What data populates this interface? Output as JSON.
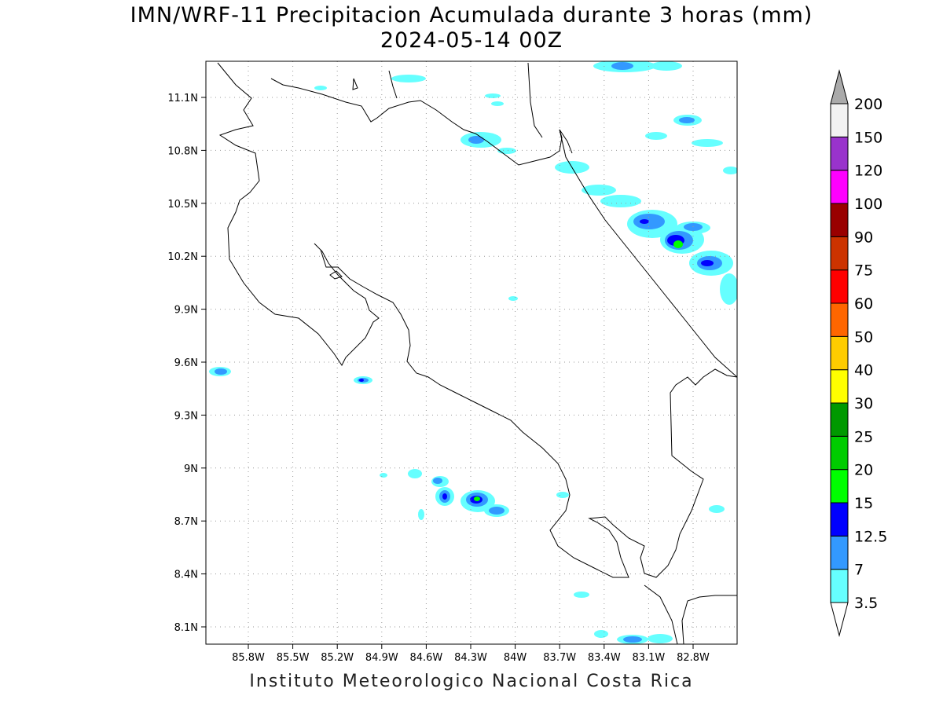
{
  "title": {
    "line1": "IMN/WRF-11 Precipitacion Acumulada durante 3 horas (mm)",
    "line2": "2024-05-14 00Z"
  },
  "footer": "Instituto Meteorologico Nacional Costa Rica",
  "map": {
    "lon_range": [
      -86.05,
      -83.05
    ],
    "lat_range": [
      8.0,
      11.3
    ],
    "lon_ticks": [
      {
        "value": -85.8,
        "label": "85.8W"
      },
      {
        "value": -85.5,
        "label": "85.5W"
      },
      {
        "value": -85.2,
        "label": "85.2W"
      },
      {
        "value": -84.9,
        "label": "84.9W"
      },
      {
        "value": -84.6,
        "label": "84.6W"
      },
      {
        "value": -84.3,
        "label": "84.3W"
      },
      {
        "value": -84.0,
        "label": "84W"
      },
      {
        "value": -83.7,
        "label": "83.7W"
      },
      {
        "value": -83.4,
        "label": "83.4W"
      },
      {
        "value": -83.1,
        "label": "83.1W"
      },
      {
        "value": -82.8,
        "label": "82.8W"
      }
    ],
    "lat_ticks": [
      {
        "value": 11.1,
        "label": "11.1N"
      },
      {
        "value": 10.8,
        "label": "10.8N"
      },
      {
        "value": 10.5,
        "label": "10.5N"
      },
      {
        "value": 10.2,
        "label": "10.2N"
      },
      {
        "value": 9.9,
        "label": "9.9N"
      },
      {
        "value": 9.6,
        "label": "9.6N"
      },
      {
        "value": 9.3,
        "label": "9.3N"
      },
      {
        "value": 9.0,
        "label": "9N"
      },
      {
        "value": 8.7,
        "label": "8.7N"
      },
      {
        "value": 8.4,
        "label": "8.4N"
      },
      {
        "value": 8.1,
        "label": "8.1N"
      }
    ],
    "grid": "dotted"
  },
  "colorbar": {
    "levels": [
      {
        "label": "3.5",
        "color": "#66ffff"
      },
      {
        "label": "7",
        "color": "#3399ff"
      },
      {
        "label": "12.5",
        "color": "#0000ff"
      },
      {
        "label": "15",
        "color": "#00ff00"
      },
      {
        "label": "20",
        "color": "#00cc00"
      },
      {
        "label": "25",
        "color": "#009900"
      },
      {
        "label": "30",
        "color": "#ffff00"
      },
      {
        "label": "40",
        "color": "#ffcc00"
      },
      {
        "label": "50",
        "color": "#ff6600"
      },
      {
        "label": "60",
        "color": "#ff0000"
      },
      {
        "label": "75",
        "color": "#cc3300"
      },
      {
        "label": "90",
        "color": "#990000"
      },
      {
        "label": "100",
        "color": "#ff00ff"
      },
      {
        "label": "120",
        "color": "#9933cc"
      },
      {
        "label": "150",
        "color": "#f2f2f2"
      },
      {
        "label": "200",
        "color": "#aaaaaa"
      }
    ]
  },
  "precipitation_cells": [
    {
      "lon": -84.23,
      "lat": 8.83,
      "intensity_mm": 20
    },
    {
      "lon": -84.45,
      "lat": 8.84,
      "intensity_mm": 12.5
    },
    {
      "lon": -84.5,
      "lat": 8.92,
      "intensity_mm": 7
    },
    {
      "lon": -84.05,
      "lat": 8.77,
      "intensity_mm": 12.5
    },
    {
      "lon": -82.98,
      "lat": 10.27,
      "intensity_mm": 20
    },
    {
      "lon": -83.05,
      "lat": 10.42,
      "intensity_mm": 12.5
    },
    {
      "lon": -82.88,
      "lat": 10.15,
      "intensity_mm": 12.5
    },
    {
      "lon": -85.87,
      "lat": 9.55,
      "intensity_mm": 7
    },
    {
      "lon": -84.94,
      "lat": 9.49,
      "intensity_mm": 12.5
    },
    {
      "lon": -83.8,
      "lat": 10.87,
      "intensity_mm": 7
    },
    {
      "lon": -83.15,
      "lat": 11.27,
      "intensity_mm": 7
    },
    {
      "lon": -82.93,
      "lat": 10.98,
      "intensity_mm": 7
    },
    {
      "lon": -83.3,
      "lat": 8.27,
      "intensity_mm": 7
    },
    {
      "lon": -83.05,
      "lat": 8.04,
      "intensity_mm": 12.5
    }
  ]
}
